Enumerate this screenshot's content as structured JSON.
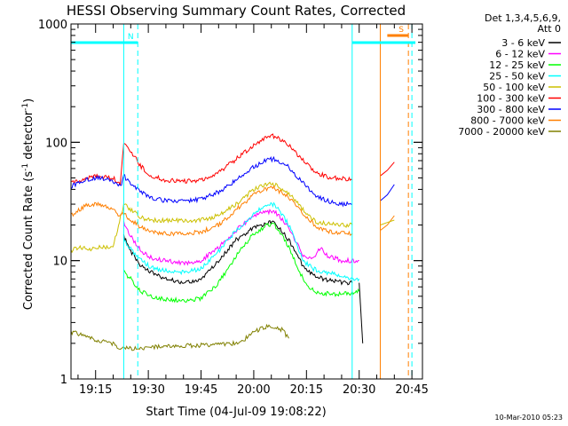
{
  "chart_data": {
    "type": "line",
    "title": "HESSI Observing Summary Count Rates, Corrected",
    "ylabel_main": "Corrected Count Rate (s",
    "ylabel_sup1": "-1",
    "ylabel_mid": " detector",
    "ylabel_sup2": "-1",
    "ylabel_end": ")",
    "xlabel": "Start Time (04-Jul-09 19:08:22)",
    "yscale": "log",
    "ylim": [
      1,
      1000
    ],
    "xlim": [
      "19:08",
      "20:48"
    ],
    "x_ticks": [
      "19:15",
      "19:30",
      "19:45",
      "20:00",
      "20:15",
      "20:30",
      "20:45"
    ],
    "y_ticks": [
      "1",
      "10",
      "100",
      "1000"
    ],
    "legend_header": [
      "Det 1,3,4,5,6,9,",
      "Att 0"
    ],
    "legend_position": "right",
    "timestamp": "10-Mar-2010 05:23",
    "flags": [
      {
        "label": "N",
        "color": "#00ffff",
        "start": "19:08",
        "end": "19:27"
      },
      {
        "label": "S",
        "color": "#ff7f00",
        "start": "20:38",
        "end": "20:44"
      },
      {
        "label": "",
        "color": "#00ffff",
        "start": "20:28",
        "end": "20:46"
      }
    ],
    "vlines": [
      {
        "time": "19:23",
        "color": "#00ffff",
        "style": "solid"
      },
      {
        "time": "19:27",
        "color": "#00ffff",
        "style": "dashed"
      },
      {
        "time": "20:28",
        "color": "#00ffff",
        "style": "solid"
      },
      {
        "time": "20:36",
        "color": "#ff7f00",
        "style": "solid"
      },
      {
        "time": "20:44",
        "color": "#ff7f00",
        "style": "dashed"
      },
      {
        "time": "20:45",
        "color": "#00ffff",
        "style": "dashed"
      }
    ],
    "series": [
      {
        "name": "3 - 6 keV",
        "color": "#000000",
        "x": [
          "19:23",
          "19:25",
          "19:28",
          "19:31",
          "19:35",
          "19:40",
          "19:45",
          "19:50",
          "19:55",
          "20:00",
          "20:04",
          "20:06",
          "20:10",
          "20:14",
          "20:17",
          "20:20",
          "20:25",
          "20:28"
        ],
        "y": [
          16,
          12,
          9,
          8,
          7,
          6.5,
          7,
          10,
          15,
          19,
          21,
          21,
          15,
          9,
          7.5,
          7,
          6.5,
          6.5
        ]
      },
      {
        "name": "6 - 12 keV",
        "color": "#ff00ff",
        "x": [
          "19:23",
          "19:25",
          "19:28",
          "19:31",
          "19:35",
          "19:40",
          "19:45",
          "19:50",
          "19:55",
          "20:00",
          "20:04",
          "20:06",
          "20:10",
          "20:14",
          "20:17",
          "20:19",
          "20:21",
          "20:23",
          "20:25",
          "20:28",
          "20:30"
        ],
        "y": [
          21,
          16,
          12,
          10.5,
          10,
          9.5,
          10,
          13,
          18,
          24,
          26,
          26,
          19,
          11,
          10.5,
          13,
          11,
          10.5,
          10,
          10,
          10
        ]
      },
      {
        "name": "12 - 25 keV",
        "color": "#00ff00",
        "x": [
          "19:23",
          "19:25",
          "19:28",
          "19:31",
          "19:35",
          "19:40",
          "19:45",
          "19:50",
          "19:55",
          "20:00",
          "20:04",
          "20:06",
          "20:10",
          "20:14",
          "20:17",
          "20:20",
          "20:25",
          "20:28",
          "20:30"
        ],
        "y": [
          8,
          7,
          5.5,
          5,
          4.7,
          4.6,
          4.8,
          6.5,
          11,
          17,
          20,
          20,
          13,
          7,
          5.5,
          5.3,
          5.2,
          5.3,
          5.5
        ]
      },
      {
        "name": "25 - 50 keV",
        "color": "#00ffff",
        "x": [
          "19:23",
          "19:25",
          "19:28",
          "19:31",
          "19:35",
          "19:40",
          "19:45",
          "19:50",
          "19:55",
          "20:00",
          "20:04",
          "20:06",
          "20:10",
          "20:14",
          "20:17",
          "20:20",
          "20:25",
          "20:28",
          "20:30"
        ],
        "y": [
          15,
          12.5,
          10,
          8.7,
          8.2,
          8,
          8.5,
          12,
          18,
          25,
          30,
          30,
          20,
          10,
          8.5,
          8,
          7.5,
          7,
          7
        ]
      },
      {
        "name": "50 - 100 keV",
        "color": "#ccc000",
        "x": [
          "19:08",
          "19:10",
          "19:13",
          "19:17",
          "19:20",
          "19:23",
          "19:25",
          "19:28",
          "19:31",
          "19:35",
          "19:40",
          "19:45",
          "19:50",
          "19:55",
          "20:00",
          "20:04",
          "20:06",
          "20:10",
          "20:14",
          "20:18",
          "20:22",
          "20:26",
          "20:28"
        ],
        "y": [
          12,
          13,
          12.5,
          13,
          13,
          30,
          27,
          23,
          22,
          22,
          22,
          22,
          24,
          30,
          40,
          44,
          44,
          37,
          27,
          21,
          20.5,
          20,
          20
        ]
      },
      {
        "name": "100 - 300 keV",
        "color": "#ff0000",
        "x": [
          "19:08",
          "19:12",
          "19:16",
          "19:20",
          "19:22",
          "19:23",
          "19:25",
          "19:28",
          "19:31",
          "19:35",
          "19:40",
          "19:45",
          "19:50",
          "19:55",
          "20:00",
          "20:04",
          "20:06",
          "20:10",
          "20:14",
          "20:18",
          "20:22",
          "20:26",
          "20:28"
        ],
        "y": [
          45,
          50,
          52,
          50,
          45,
          100,
          85,
          62,
          52,
          48,
          47,
          48,
          56,
          72,
          95,
          112,
          113,
          95,
          70,
          55,
          50,
          49,
          48
        ]
      },
      {
        "name": "300 - 800 keV",
        "color": "#0000ff",
        "x": [
          "19:08",
          "19:12",
          "19:16",
          "19:20",
          "19:22",
          "19:23",
          "19:25",
          "19:28",
          "19:31",
          "19:35",
          "19:40",
          "19:45",
          "19:50",
          "19:55",
          "20:00",
          "20:04",
          "20:06",
          "20:10",
          "20:14",
          "20:18",
          "20:22",
          "20:26",
          "20:28"
        ],
        "y": [
          42,
          48,
          50,
          47,
          42,
          52,
          45,
          38,
          34,
          32,
          32,
          33,
          38,
          48,
          62,
          72,
          72,
          62,
          45,
          35,
          31,
          30,
          30
        ]
      },
      {
        "name": "800 - 7000 keV",
        "color": "#ff7f00",
        "x": [
          "19:08",
          "19:12",
          "19:16",
          "19:20",
          "19:22",
          "19:23",
          "19:25",
          "19:28",
          "19:31",
          "19:35",
          "19:40",
          "19:45",
          "19:50",
          "19:55",
          "20:00",
          "20:04",
          "20:06",
          "20:10",
          "20:14",
          "20:18",
          "20:22",
          "20:26",
          "20:28"
        ],
        "y": [
          24,
          29,
          30,
          27,
          24,
          25,
          22,
          19,
          17.5,
          17,
          17,
          17.5,
          20,
          27,
          36,
          41,
          41,
          34,
          25,
          19,
          17.5,
          17,
          17
        ]
      },
      {
        "name": "7000 - 20000 keV",
        "color": "#808000",
        "x": [
          "19:08",
          "19:12",
          "19:16",
          "19:20",
          "19:22",
          "19:56",
          "20:00",
          "20:04",
          "20:08",
          "20:10"
        ],
        "y": [
          2.5,
          2.3,
          2.1,
          2.0,
          1.8,
          2.0,
          2.5,
          2.8,
          2.6,
          2.2
        ]
      }
    ],
    "tail": [
      {
        "series": "300 - 800 keV",
        "x": [
          "20:36",
          "20:38",
          "20:40"
        ],
        "y": [
          32,
          36,
          44
        ]
      },
      {
        "series": "100 - 300 keV",
        "x": [
          "20:36",
          "20:38",
          "20:40"
        ],
        "y": [
          52,
          58,
          68
        ]
      },
      {
        "series": "800 - 7000 keV",
        "x": [
          "20:36",
          "20:38",
          "20:40"
        ],
        "y": [
          18,
          20,
          24
        ]
      },
      {
        "series": "50 - 100 keV",
        "x": [
          "20:36",
          "20:38",
          "20:40"
        ],
        "y": [
          20,
          21,
          22
        ]
      },
      {
        "series": "3 - 6 keV",
        "x": [
          "20:30",
          "20:31"
        ],
        "y": [
          6.5,
          2.0
        ]
      }
    ]
  }
}
